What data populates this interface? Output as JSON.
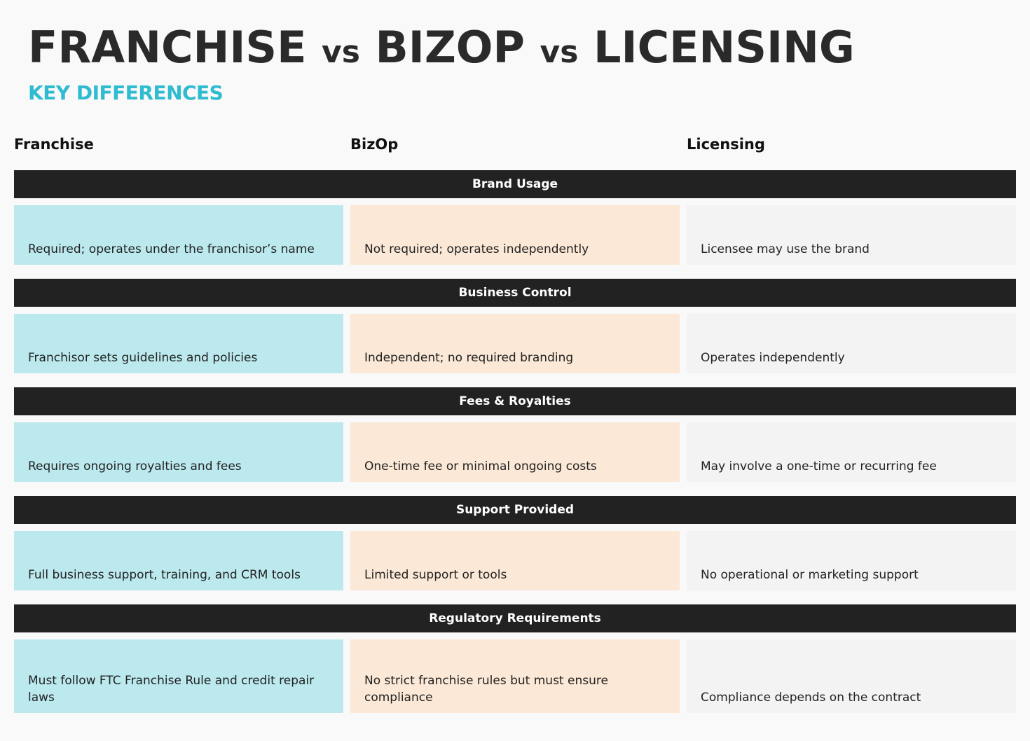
{
  "header": {
    "title_part1": "FRANCHISE",
    "title_vs1": "vs",
    "title_part2": "BIZOP",
    "title_vs2": "vs",
    "title_part3": "LICENSING",
    "subtitle": "KEY DIFFERENCES"
  },
  "columns": {
    "franchise": "Franchise",
    "bizop": "BizOp",
    "licensing": "Licensing"
  },
  "sections": [
    {
      "label": "Brand Usage",
      "franchise": "Required; operates under the franchisor’s name",
      "bizop": "Not required; operates independently",
      "licensing": "Licensee may use the brand"
    },
    {
      "label": "Business Control",
      "franchise": "Franchisor sets guidelines and policies",
      "bizop": "Independent; no required branding",
      "licensing": "Operates independently"
    },
    {
      "label": "Fees & Royalties",
      "franchise": "Requires ongoing royalties and fees",
      "bizop": "One-time fee or minimal ongoing costs",
      "licensing": "May involve a one-time or recurring fee"
    },
    {
      "label": "Support Provided",
      "franchise": "Full business support, training, and CRM tools",
      "bizop": "Limited support or tools",
      "licensing": "No operational or marketing support"
    },
    {
      "label": "Regulatory Requirements",
      "franchise": "Must follow FTC Franchise Rule and credit repair laws",
      "bizop": "No strict franchise rules but must ensure compliance",
      "licensing": "Compliance depends on the contract"
    }
  ],
  "colors": {
    "accent": "#2fbcd0",
    "bar": "#222222",
    "franchise_bg": "#bbe9ee",
    "bizop_bg": "#fbe8d6",
    "licensing_bg": "#f2f3f2"
  }
}
